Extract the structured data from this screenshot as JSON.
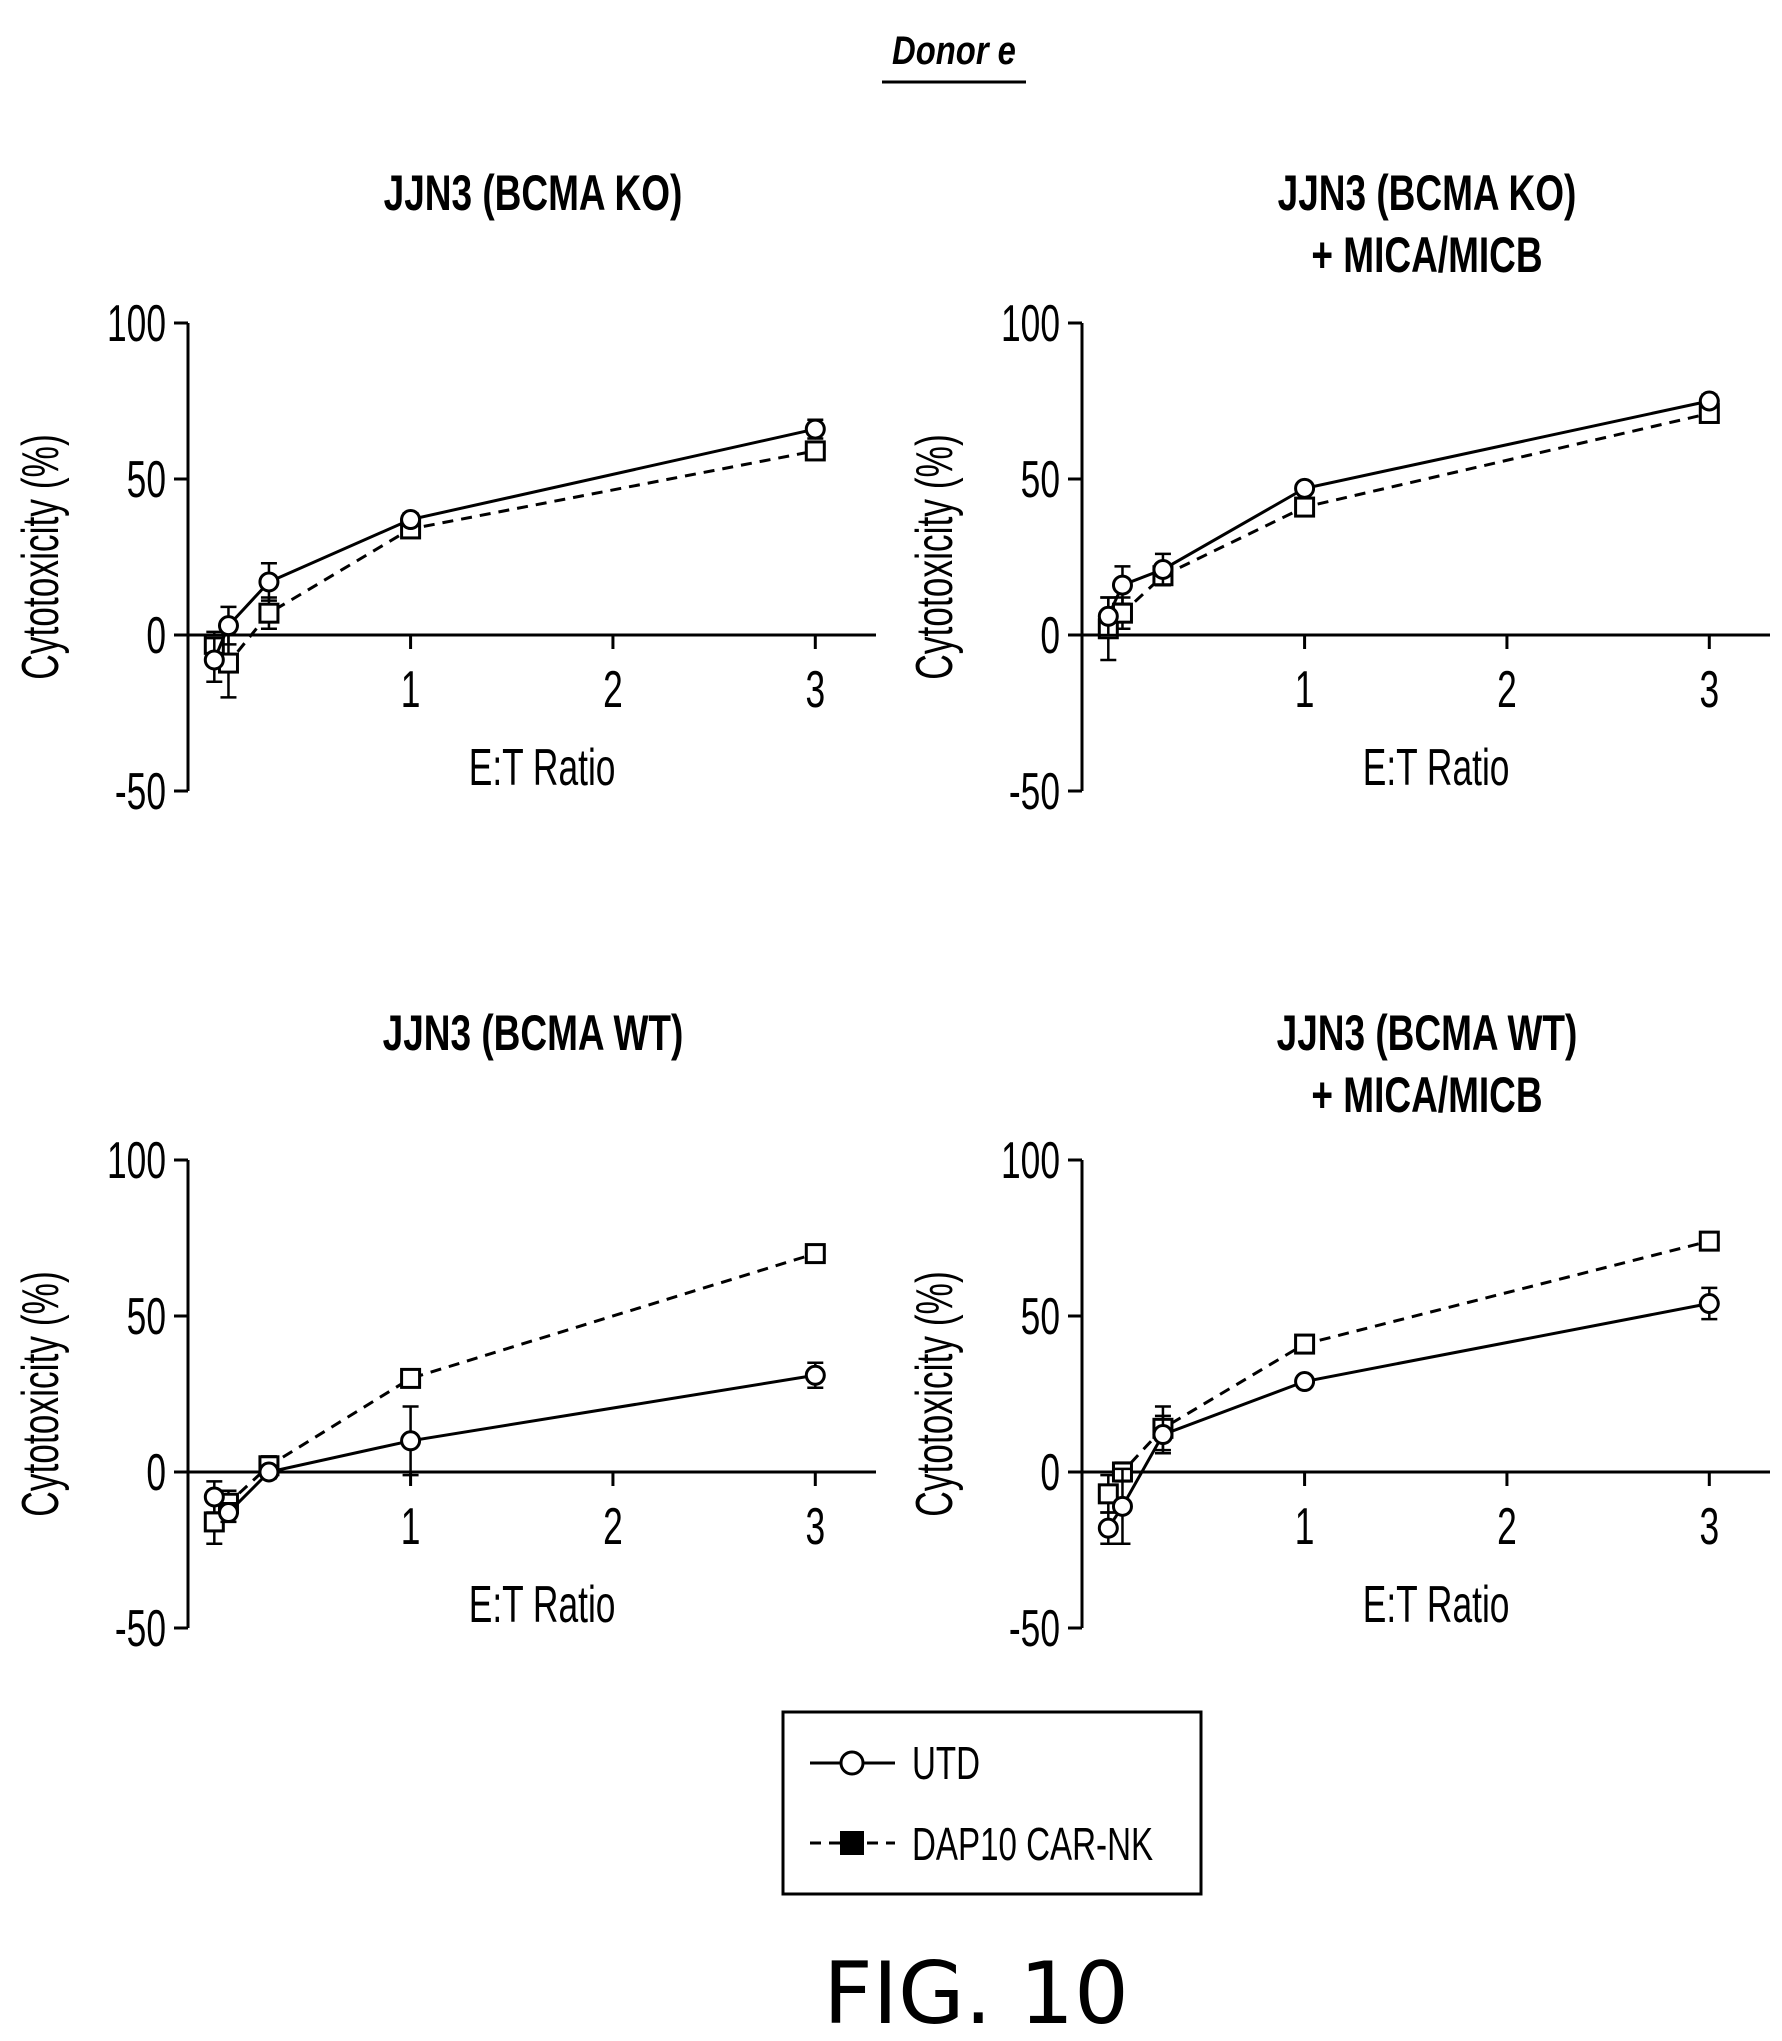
{
  "header": {
    "donor_label": "Donor e"
  },
  "figure_caption": "FIG. 10",
  "legend": {
    "items": [
      {
        "label": "UTD",
        "line_style": "solid",
        "marker": "open-circle"
      },
      {
        "label": "DAP10 CAR-NK",
        "line_style": "dashed",
        "marker": "filled-square"
      }
    ]
  },
  "chart_data": [
    {
      "type": "line",
      "title_lines": [
        "JJN3 (BCMA KO)"
      ],
      "xlabel": "E:T Ratio",
      "ylabel": "Cytotoxicity (%)",
      "xlim": [
        -0.1,
        3.3
      ],
      "ylim": [
        -50,
        100
      ],
      "xticks": [
        "1",
        "2",
        "3"
      ],
      "xtick_values": [
        1,
        2,
        3
      ],
      "yticks": [
        "-50",
        "0",
        "50",
        "100"
      ],
      "ytick_values": [
        -50,
        0,
        50,
        100
      ],
      "grid": false,
      "series": [
        {
          "name": "UTD",
          "style": "solid",
          "marker": "circle",
          "x": [
            0.03,
            0.1,
            0.3,
            1,
            3
          ],
          "y": [
            -8,
            3,
            17,
            37,
            66
          ],
          "err": [
            7,
            6,
            6,
            2,
            3
          ]
        },
        {
          "name": "DAP10 CAR-NK",
          "style": "dashed",
          "marker": "square",
          "x": [
            0.03,
            0.1,
            0.3,
            1,
            3
          ],
          "y": [
            -3,
            -9,
            7,
            34,
            59
          ],
          "err": [
            4,
            11,
            5,
            2,
            2
          ]
        }
      ]
    },
    {
      "type": "line",
      "title_lines": [
        "JJN3 (BCMA KO)",
        "+ MICA/MICB"
      ],
      "xlabel": "E:T Ratio",
      "ylabel": "Cytotoxicity (%)",
      "xlim": [
        -0.1,
        3.3
      ],
      "ylim": [
        -50,
        100
      ],
      "xticks": [
        "1",
        "2",
        "3"
      ],
      "xtick_values": [
        1,
        2,
        3
      ],
      "yticks": [
        "-50",
        "0",
        "50",
        "100"
      ],
      "ytick_values": [
        -50,
        0,
        50,
        100
      ],
      "grid": false,
      "series": [
        {
          "name": "UTD",
          "style": "solid",
          "marker": "circle",
          "x": [
            0.03,
            0.1,
            0.3,
            1,
            3
          ],
          "y": [
            6,
            16,
            21,
            47,
            75
          ],
          "err": [
            6,
            6,
            5,
            1,
            2
          ]
        },
        {
          "name": "DAP10 CAR-NK",
          "style": "dashed",
          "marker": "square",
          "x": [
            0.03,
            0.1,
            0.3,
            1,
            3
          ],
          "y": [
            2,
            7,
            19,
            41,
            71
          ],
          "err": [
            10,
            5,
            3,
            1,
            2
          ]
        }
      ]
    },
    {
      "type": "line",
      "title_lines": [
        "JJN3 (BCMA WT)"
      ],
      "xlabel": "E:T Ratio",
      "ylabel": "Cytotoxicity (%)",
      "xlim": [
        -0.1,
        3.3
      ],
      "ylim": [
        -50,
        100
      ],
      "xticks": [
        "1",
        "2",
        "3"
      ],
      "xtick_values": [
        1,
        2,
        3
      ],
      "yticks": [
        "-50",
        "0",
        "50",
        "100"
      ],
      "ytick_values": [
        -50,
        0,
        50,
        100
      ],
      "grid": false,
      "series": [
        {
          "name": "UTD",
          "style": "solid",
          "marker": "circle",
          "x": [
            0.03,
            0.1,
            0.3,
            1,
            3
          ],
          "y": [
            -8,
            -13,
            0,
            10,
            31
          ],
          "err": [
            5,
            3,
            2,
            11,
            4
          ]
        },
        {
          "name": "DAP10 CAR-NK",
          "style": "dashed",
          "marker": "square",
          "x": [
            0.03,
            0.1,
            0.3,
            1,
            3
          ],
          "y": [
            -16,
            -10,
            2,
            30,
            70
          ],
          "err": [
            7,
            4,
            3,
            2,
            2
          ]
        }
      ]
    },
    {
      "type": "line",
      "title_lines": [
        "JJN3 (BCMA WT)",
        "+ MICA/MICB"
      ],
      "xlabel": "E:T Ratio",
      "ylabel": "Cytotoxicity (%)",
      "xlim": [
        -0.1,
        3.3
      ],
      "ylim": [
        -50,
        100
      ],
      "xticks": [
        "1",
        "2",
        "3"
      ],
      "xtick_values": [
        1,
        2,
        3
      ],
      "yticks": [
        "-50",
        "0",
        "50",
        "100"
      ],
      "ytick_values": [
        -50,
        0,
        50,
        100
      ],
      "grid": false,
      "series": [
        {
          "name": "UTD",
          "style": "solid",
          "marker": "circle",
          "x": [
            0.03,
            0.1,
            0.3,
            1,
            3
          ],
          "y": [
            -18,
            -11,
            12,
            29,
            54
          ],
          "err": [
            5,
            12,
            6,
            1,
            5
          ]
        },
        {
          "name": "DAP10 CAR-NK",
          "style": "dashed",
          "marker": "square",
          "x": [
            0.03,
            0.1,
            0.3,
            1,
            3
          ],
          "y": [
            -7,
            0,
            14,
            41,
            74
          ],
          "err": [
            6,
            3,
            7,
            2,
            2
          ]
        }
      ]
    }
  ]
}
